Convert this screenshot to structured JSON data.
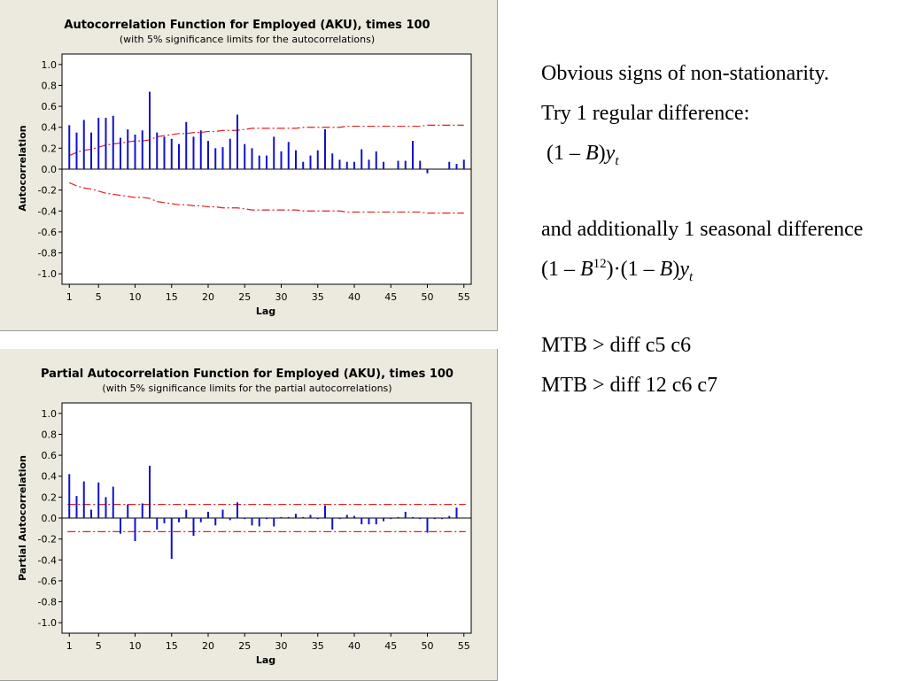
{
  "notes": {
    "line1": "Obvious signs of non-stationarity.",
    "line2": "Try 1 regular difference:",
    "formula1": {
      "open": "(1 – ",
      "B": "B",
      "close": ")",
      "y": "y",
      "sub": "t"
    },
    "line3": "and additionally 1 seasonal difference",
    "formula2": {
      "open": "(1 – ",
      "B": "B",
      "sup": "12",
      "mid": ")·(1 – ",
      "B2": "B",
      "close": ")",
      "y": "y",
      "sub": "t"
    },
    "cmd1": "MTB > diff c5 c6",
    "cmd2": "MTB > diff 12 c6 c7"
  },
  "colors": {
    "bars": "#1010cc",
    "limits": "#dd2222"
  },
  "chart_data": [
    {
      "type": "bar",
      "title": "Autocorrelation Function for Employed (AKU), times 100",
      "subtitle": "(with 5% significance limits for the autocorrelations)",
      "xlabel": "Lag",
      "ylabel": "Autocorrelation",
      "xlim": [
        0,
        56
      ],
      "ylim": [
        -1.1,
        1.1
      ],
      "xticks": [
        "1",
        "5",
        "10",
        "15",
        "20",
        "25",
        "30",
        "35",
        "40",
        "45",
        "50",
        "55"
      ],
      "yticks": [
        "1.0",
        "0.8",
        "0.6",
        "0.4",
        "0.2",
        "0.0",
        "-0.2",
        "-0.4",
        "-0.6",
        "-0.8",
        "-1.0"
      ],
      "x": [
        1,
        2,
        3,
        4,
        5,
        6,
        7,
        8,
        9,
        10,
        11,
        12,
        13,
        14,
        15,
        16,
        17,
        18,
        19,
        20,
        21,
        22,
        23,
        24,
        25,
        26,
        27,
        28,
        29,
        30,
        31,
        32,
        33,
        34,
        35,
        36,
        37,
        38,
        39,
        40,
        41,
        42,
        43,
        44,
        45,
        46,
        47,
        48,
        49,
        50,
        51,
        52,
        53,
        54,
        55
      ],
      "values": [
        0.42,
        0.35,
        0.47,
        0.35,
        0.49,
        0.49,
        0.51,
        0.3,
        0.38,
        0.33,
        0.37,
        0.74,
        0.35,
        0.31,
        0.29,
        0.24,
        0.45,
        0.31,
        0.37,
        0.27,
        0.2,
        0.21,
        0.29,
        0.52,
        0.24,
        0.2,
        0.13,
        0.13,
        0.31,
        0.17,
        0.26,
        0.18,
        0.07,
        0.13,
        0.18,
        0.38,
        0.15,
        0.09,
        0.07,
        0.07,
        0.19,
        0.09,
        0.17,
        0.07,
        0.0,
        0.08,
        0.08,
        0.27,
        0.08,
        -0.04,
        0.0,
        0.0,
        0.07,
        0.05,
        0.09
      ],
      "limits": [
        0.13,
        0.16,
        0.18,
        0.19,
        0.21,
        0.23,
        0.24,
        0.25,
        0.26,
        0.27,
        0.27,
        0.28,
        0.31,
        0.32,
        0.33,
        0.34,
        0.34,
        0.35,
        0.35,
        0.36,
        0.36,
        0.37,
        0.37,
        0.37,
        0.38,
        0.39,
        0.39,
        0.39,
        0.39,
        0.39,
        0.39,
        0.39,
        0.4,
        0.4,
        0.4,
        0.4,
        0.4,
        0.4,
        0.41,
        0.41,
        0.41,
        0.41,
        0.41,
        0.41,
        0.41,
        0.41,
        0.41,
        0.41,
        0.41,
        0.42,
        0.42,
        0.42,
        0.42,
        0.42,
        0.42
      ]
    },
    {
      "type": "bar",
      "title": "Partial Autocorrelation Function for Employed (AKU), times 100",
      "subtitle": "(with 5% significance limits for the partial autocorrelations)",
      "xlabel": "Lag",
      "ylabel": "Partial Autocorrelation",
      "xlim": [
        0,
        56
      ],
      "ylim": [
        -1.1,
        1.1
      ],
      "xticks": [
        "1",
        "5",
        "10",
        "15",
        "20",
        "25",
        "30",
        "35",
        "40",
        "45",
        "50",
        "55"
      ],
      "yticks": [
        "1.0",
        "0.8",
        "0.6",
        "0.4",
        "0.2",
        "0.0",
        "-0.2",
        "-0.4",
        "-0.6",
        "-0.8",
        "-1.0"
      ],
      "x": [
        1,
        2,
        3,
        4,
        5,
        6,
        7,
        8,
        9,
        10,
        11,
        12,
        13,
        14,
        15,
        16,
        17,
        18,
        19,
        20,
        21,
        22,
        23,
        24,
        25,
        26,
        27,
        28,
        29,
        30,
        31,
        32,
        33,
        34,
        35,
        36,
        37,
        38,
        39,
        40,
        41,
        42,
        43,
        44,
        45,
        46,
        47,
        48,
        49,
        50,
        51,
        52,
        53,
        54,
        55
      ],
      "values": [
        0.42,
        0.21,
        0.35,
        0.08,
        0.34,
        0.2,
        0.3,
        -0.15,
        0.13,
        -0.22,
        0.14,
        0.5,
        -0.11,
        -0.05,
        -0.39,
        -0.04,
        0.08,
        -0.17,
        -0.04,
        0.06,
        -0.07,
        0.08,
        -0.02,
        0.15,
        -0.01,
        -0.07,
        -0.08,
        -0.01,
        -0.08,
        0.01,
        0.01,
        0.04,
        0.01,
        0.03,
        -0.01,
        0.12,
        -0.11,
        -0.01,
        0.03,
        0.02,
        -0.06,
        -0.06,
        -0.06,
        -0.03,
        -0.01,
        0.01,
        0.06,
        0.01,
        -0.01,
        -0.14,
        -0.01,
        -0.01,
        0.02,
        0.1,
        0.0
      ],
      "limits": [
        0.13
      ]
    }
  ]
}
